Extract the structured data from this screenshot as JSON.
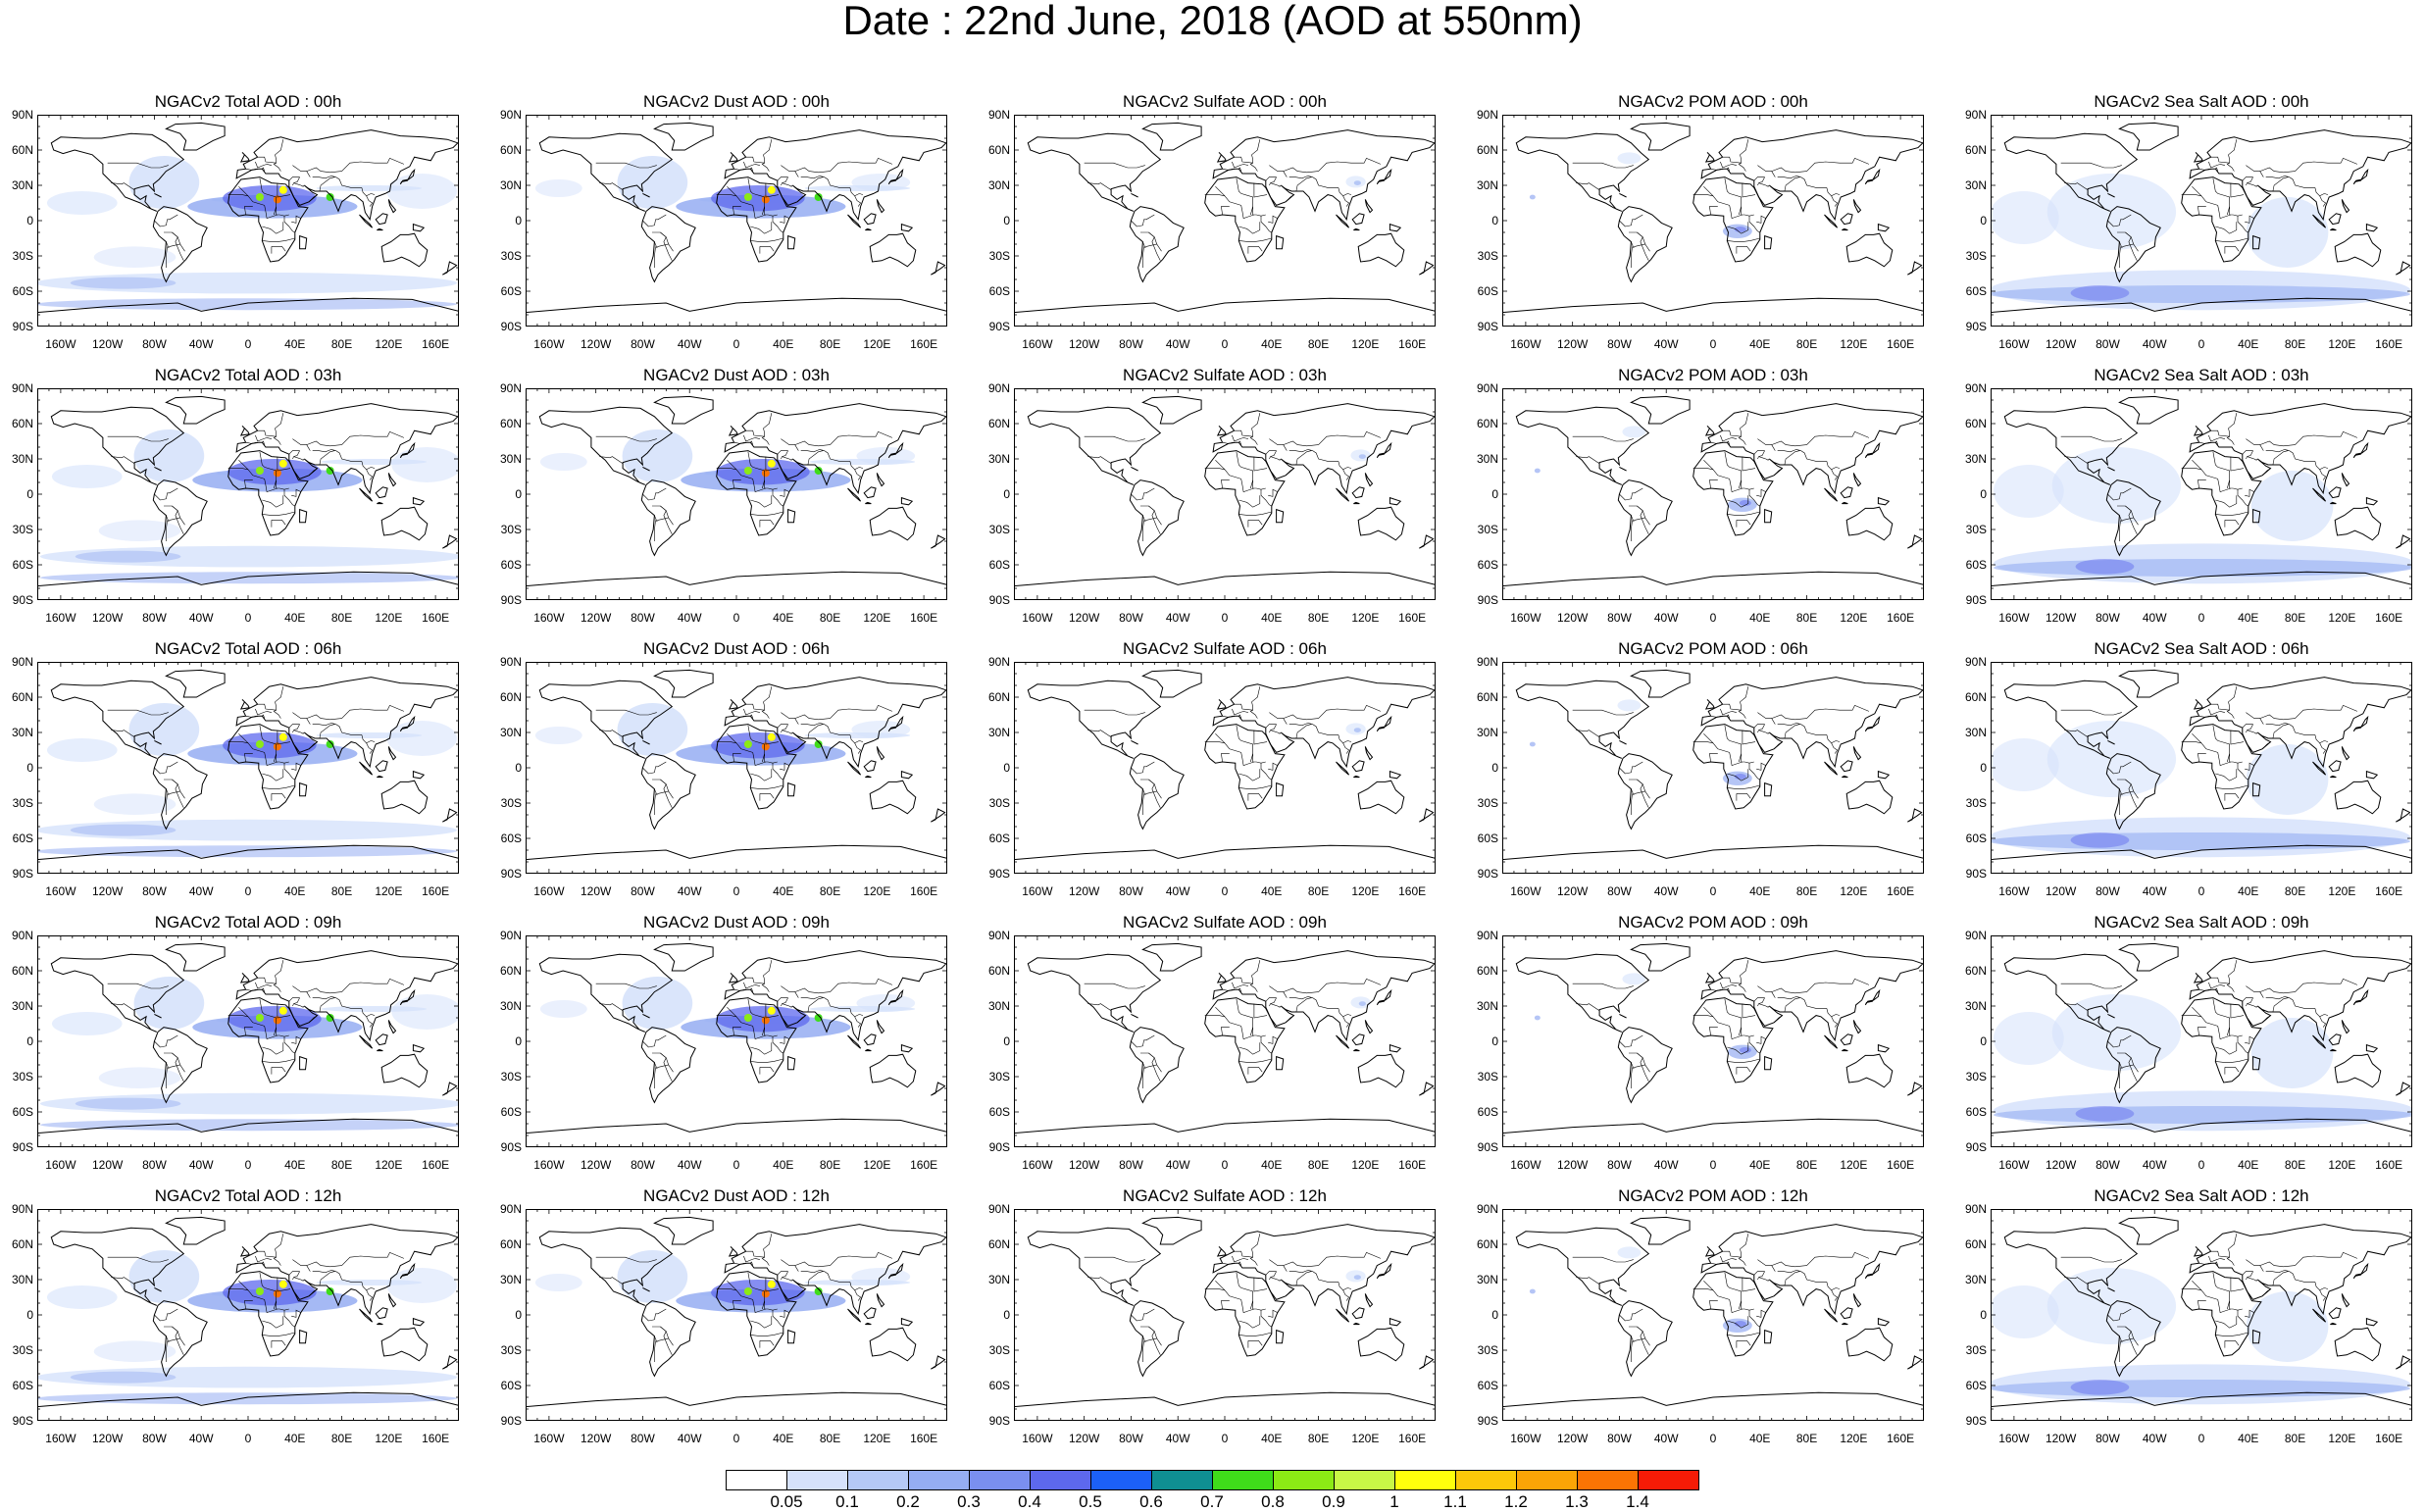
{
  "title": "Date : 22nd June, 2018 (AOD at 550nm)",
  "rows": [
    "00h",
    "03h",
    "06h",
    "09h",
    "12h"
  ],
  "columns": [
    {
      "key": "total",
      "panel_titles": [
        "NGACv2 Total AOD : 00h",
        "NGACv2 Total AOD : 03h",
        "NGACv2 Total AOD : 06h",
        "NGACv2 Total AOD : 09h",
        "NGACv2 Total AOD :  12h"
      ]
    },
    {
      "key": "dust",
      "panel_titles": [
        "NGACv2 Dust AOD : 00h",
        "NGACv2 Dust AOD : 03h",
        "NGACv2 Dust AOD : 06h",
        "NGACv2 Dust AOD : 09h",
        "NGACv2 Dust AOD : 12h"
      ]
    },
    {
      "key": "sulfate",
      "panel_titles": [
        "NGACv2 Sulfate AOD : 00h",
        "NGACv2 Sulfate AOD : 03h",
        "NGACv2 Sulfate AOD : 06h",
        "NGACv2 Sulfate AOD : 09h",
        "NGACv2 Sulfate AOD : 12h"
      ]
    },
    {
      "key": "pom",
      "panel_titles": [
        "NGACv2 POM AOD : 00h",
        "NGACv2 POM AOD : 03h",
        "NGACv2 POM AOD : 06h",
        "NGACv2 POM AOD : 09h",
        "NGACv2 POM  AOD : 12h"
      ]
    },
    {
      "key": "seasalt",
      "panel_titles": [
        "NGACv2 Sea Salt AOD : 00h",
        "NGACv2 Sea Salt AOD : 03h",
        "NGACv2 Sea Salt AOD : 06h",
        "NGACv2 Sea Salt  AOD : 09h",
        "NGACv2 Sea Salt AOD : 12h"
      ]
    }
  ],
  "lat_labels": [
    "90N",
    "60N",
    "30N",
    "0",
    "30S",
    "60S",
    "90S"
  ],
  "lon_labels": [
    "160W",
    "120W",
    "80W",
    "40W",
    "0",
    "40E",
    "80E",
    "120E",
    "160E"
  ],
  "colorbar": {
    "labels": [
      "0.05",
      "0.1",
      "0.2",
      "0.3",
      "0.4",
      "0.5",
      "0.6",
      "0.7",
      "0.8",
      "0.9",
      "1",
      "1.1",
      "1.2",
      "1.3",
      "1.4"
    ],
    "colors": [
      "#ffffff",
      "#d6e2fb",
      "#b5c9f6",
      "#95adf2",
      "#7a8ff0",
      "#5d68ed",
      "#1c60f7",
      "#0f8f92",
      "#3fdc1a",
      "#8cea15",
      "#c8f746",
      "#ffff0c",
      "#fcc809",
      "#fba406",
      "#fb7404",
      "#f61b06"
    ]
  },
  "colors": {
    "land": "#ffffff",
    "coast": "#000000",
    "light": "#d6e2fb",
    "mid": "#95adf2",
    "dark": "#5d68ed"
  }
}
